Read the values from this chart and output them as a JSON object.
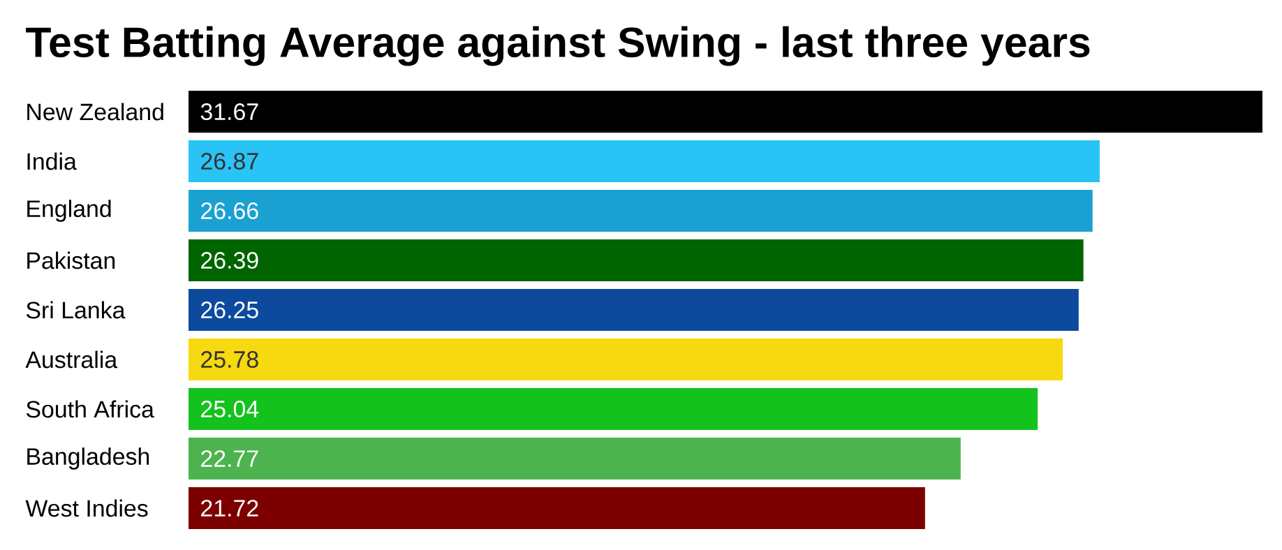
{
  "chart_data": {
    "type": "bar",
    "orientation": "horizontal",
    "title": "Test Batting Average against Swing - last three years",
    "categories": [
      "New Zealand",
      "India",
      "England",
      "Pakistan",
      "Sri Lanka",
      "Australia",
      "South Africa",
      "Bangladesh",
      "West Indies"
    ],
    "values": [
      31.67,
      26.87,
      26.66,
      26.39,
      26.25,
      25.78,
      25.04,
      22.77,
      21.72
    ],
    "colors": [
      "#000000",
      "#29c3f5",
      "#1ba1d1",
      "#006400",
      "#0d4a9e",
      "#f7d90f",
      "#13c21c",
      "#4db34f",
      "#7d0000"
    ],
    "data_labels": true,
    "tick_labels": "y"
  }
}
